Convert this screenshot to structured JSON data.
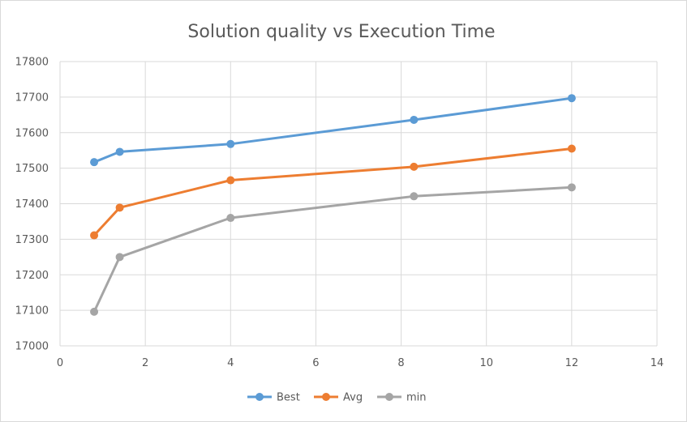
{
  "chart_data": {
    "type": "line",
    "title": "Solution quality vs Execution Time",
    "xlabel": "",
    "ylabel": "",
    "xlim": [
      0,
      14
    ],
    "ylim": [
      17000,
      17800
    ],
    "xticks": [
      0,
      2,
      4,
      6,
      8,
      10,
      12,
      14
    ],
    "yticks": [
      17000,
      17100,
      17200,
      17300,
      17400,
      17500,
      17600,
      17700,
      17800
    ],
    "grid": true,
    "legend_position": "bottom",
    "series": [
      {
        "name": "Best",
        "color": "#5b9bd5",
        "x": [
          0.8,
          1.4,
          4,
          8.3,
          12
        ],
        "y": [
          17517,
          17546,
          17568,
          17636,
          17697
        ]
      },
      {
        "name": "Avg",
        "color": "#ed7d31",
        "x": [
          0.8,
          1.4,
          4,
          8.3,
          12
        ],
        "y": [
          17311,
          17389,
          17466,
          17504,
          17555
        ]
      },
      {
        "name": "min",
        "color": "#a5a5a5",
        "x": [
          0.8,
          1.4,
          4,
          8.3,
          12
        ],
        "y": [
          17096,
          17250,
          17360,
          17421,
          17446
        ]
      }
    ]
  }
}
